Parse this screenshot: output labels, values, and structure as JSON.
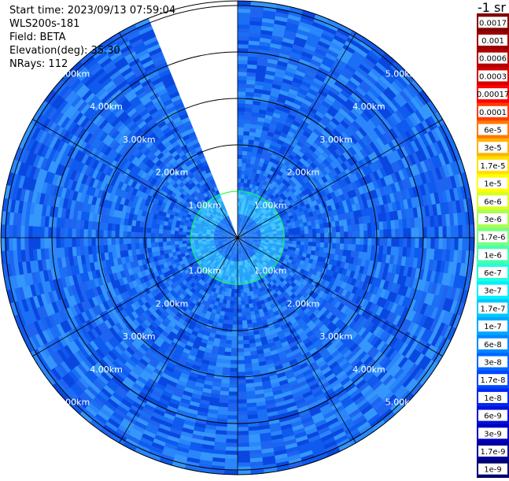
{
  "header": {
    "start_time": "Start time: 2023/09/13 07:59:04",
    "instrument": "WLS200s-181",
    "field": "Field: BETA",
    "elevation": "Elevation(deg): 35.30",
    "nrays": "NRays: 112"
  },
  "colorbar": {
    "unit_label": "-1 sr",
    "levels": [
      {
        "label": "0.0017",
        "color": "#800000"
      },
      {
        "label": "0.001",
        "color": "#9a0000"
      },
      {
        "label": "0.0006",
        "color": "#b40000"
      },
      {
        "label": "0.0003",
        "color": "#d40000"
      },
      {
        "label": "0.00017",
        "color": "#ff0000"
      },
      {
        "label": "0.0001",
        "color": "#ff3c00"
      },
      {
        "label": "6e-5",
        "color": "#ff7800"
      },
      {
        "label": "3e-5",
        "color": "#ffb400"
      },
      {
        "label": "1.7e-5",
        "color": "#ffe000"
      },
      {
        "label": "1e-5",
        "color": "#ffff00"
      },
      {
        "label": "6e-6",
        "color": "#d8ff20"
      },
      {
        "label": "3e-6",
        "color": "#a8ff50"
      },
      {
        "label": "1.7e-6",
        "color": "#78ff80"
      },
      {
        "label": "1e-6",
        "color": "#48ffb0"
      },
      {
        "label": "6e-7",
        "color": "#20ffd8"
      },
      {
        "label": "3e-7",
        "color": "#00f0ff"
      },
      {
        "label": "1.7e-7",
        "color": "#00c8ff"
      },
      {
        "label": "1e-7",
        "color": "#00a8ff"
      },
      {
        "label": "6e-8",
        "color": "#0088ff"
      },
      {
        "label": "3e-8",
        "color": "#0068ff"
      },
      {
        "label": "1.7e-8",
        "color": "#0048ff"
      },
      {
        "label": "1e-8",
        "color": "#0028f0"
      },
      {
        "label": "6e-9",
        "color": "#0010d8"
      },
      {
        "label": "3e-9",
        "color": "#0000c0"
      },
      {
        "label": "1.7e-9",
        "color": "#000098"
      },
      {
        "label": "1e-9",
        "color": "#000070"
      }
    ]
  },
  "chart_data": {
    "type": "heatmap",
    "projection": "polar (PPI)",
    "field": "BETA",
    "elevation_deg": 35.3,
    "n_rays": 112,
    "range_rings_km": [
      1,
      2,
      3,
      4,
      5
    ],
    "range_labels": [
      "1.00km",
      "2.00km",
      "3.00km",
      "4.00km",
      "5.00km"
    ],
    "azimuth_spokes_deg": [
      0,
      30,
      60,
      90,
      120,
      150,
      180,
      210,
      240,
      270,
      300,
      330
    ],
    "max_range_km": 5.1,
    "missing_sector_deg": [
      338,
      360
    ],
    "dominant_value": "1e-7 to 6e-8",
    "inner_value_near_center": "3e-7 to 1.7e-7",
    "scale": "log",
    "colorbar_range": [
      "1e-9",
      "0.0017"
    ]
  }
}
